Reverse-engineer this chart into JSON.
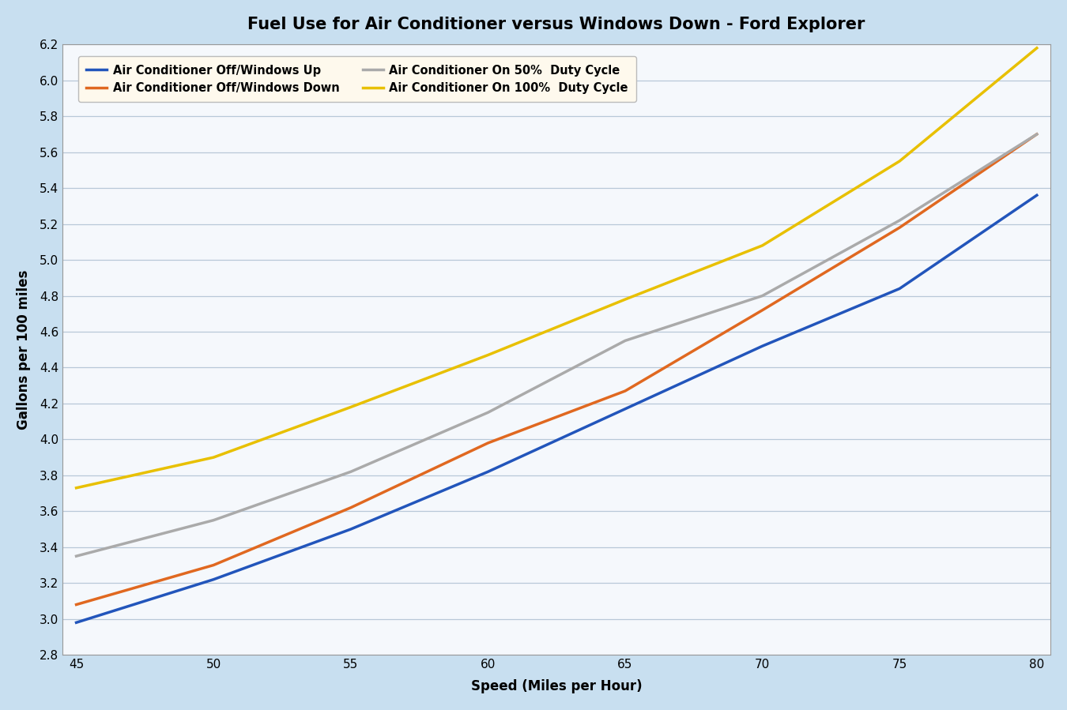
{
  "title": "Fuel Use for Air Conditioner versus Windows Down - Ford Explorer",
  "xlabel": "Speed (Miles per Hour)",
  "ylabel": "Gallons per 100 miles",
  "background_color": "#c8dff0",
  "plot_bg_color": "#f5f8fc",
  "legend_bg_color": "#fef9ed",
  "speeds": [
    45,
    50,
    55,
    60,
    65,
    70,
    75,
    80
  ],
  "series": [
    {
      "label": "Air Conditioner Off/Windows Up",
      "color": "#2255bb",
      "linewidth": 2.5,
      "values": [
        2.98,
        3.22,
        3.5,
        3.82,
        4.17,
        4.52,
        4.84,
        5.36
      ]
    },
    {
      "label": "Air Conditioner Off/Windows Down",
      "color": "#e06820",
      "linewidth": 2.5,
      "values": [
        3.08,
        3.3,
        3.62,
        3.98,
        4.27,
        4.72,
        5.18,
        5.7
      ]
    },
    {
      "label": "Air Conditioner On 50%  Duty Cycle",
      "color": "#aaaaaa",
      "linewidth": 2.5,
      "values": [
        3.35,
        3.55,
        3.82,
        4.15,
        4.55,
        4.8,
        5.22,
        5.7
      ]
    },
    {
      "label": "Air Conditioner On 100%  Duty Cycle",
      "color": "#e8c000",
      "linewidth": 2.5,
      "values": [
        3.73,
        3.9,
        4.18,
        4.47,
        4.78,
        5.08,
        5.55,
        6.18
      ]
    }
  ],
  "xlim": [
    44.5,
    80.5
  ],
  "ylim": [
    2.8,
    6.2
  ],
  "xticks": [
    45,
    50,
    55,
    60,
    65,
    70,
    75,
    80
  ],
  "yticks": [
    2.8,
    3.0,
    3.2,
    3.4,
    3.6,
    3.8,
    4.0,
    4.2,
    4.4,
    4.6,
    4.8,
    5.0,
    5.2,
    5.4,
    5.6,
    5.8,
    6.0,
    6.2
  ],
  "title_fontsize": 15,
  "axis_label_fontsize": 12,
  "tick_fontsize": 11,
  "legend_fontsize": 10.5
}
